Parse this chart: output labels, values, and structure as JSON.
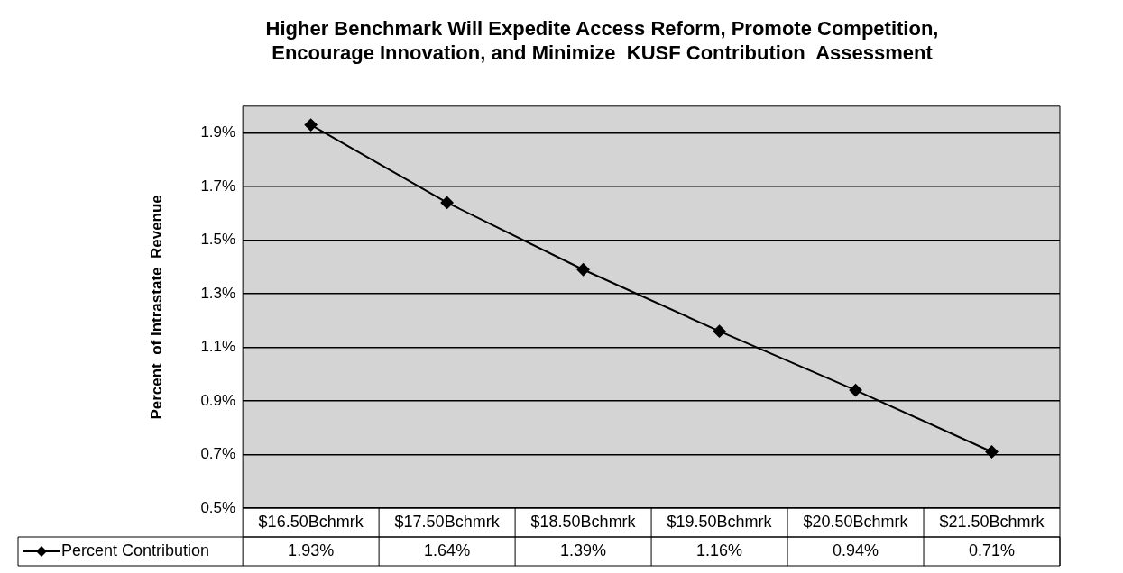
{
  "chart_data": {
    "type": "line",
    "title": "Higher Benchmark Will Expedite Access Reform, Promote Competition,\nEncourage Innovation, and Minimize  KUSF Contribution  Assessment",
    "ylabel": "Percent  of Intrastate  Revenue",
    "categories": [
      "$16.50Bchmrk",
      "$17.50Bchmrk",
      "$18.50Bchmrk",
      "$19.50Bchmrk",
      "$20.50Bchmrk",
      "$21.50Bchmrk"
    ],
    "series": [
      {
        "name": "Percent Contribution",
        "color": "#000000",
        "values": [
          1.93,
          1.64,
          1.39,
          1.16,
          0.94,
          0.71
        ],
        "value_labels": [
          "1.93%",
          "1.64%",
          "1.39%",
          "1.16%",
          "0.94%",
          "0.71%"
        ]
      }
    ],
    "ylim": [
      0.5,
      2.0
    ],
    "yticks": [
      {
        "value": 0.5,
        "label": "0.5%"
      },
      {
        "value": 0.7,
        "label": "0.7%"
      },
      {
        "value": 0.9,
        "label": "0.9%"
      },
      {
        "value": 1.1,
        "label": "1.1%"
      },
      {
        "value": 1.3,
        "label": "1.3%"
      },
      {
        "value": 1.5,
        "label": "1.5%"
      },
      {
        "value": 1.7,
        "label": "1.7%"
      },
      {
        "value": 1.9,
        "label": "1.9%"
      }
    ],
    "grid": "y",
    "legend": "bottom",
    "marker": "diamond",
    "line_style": "solid"
  }
}
